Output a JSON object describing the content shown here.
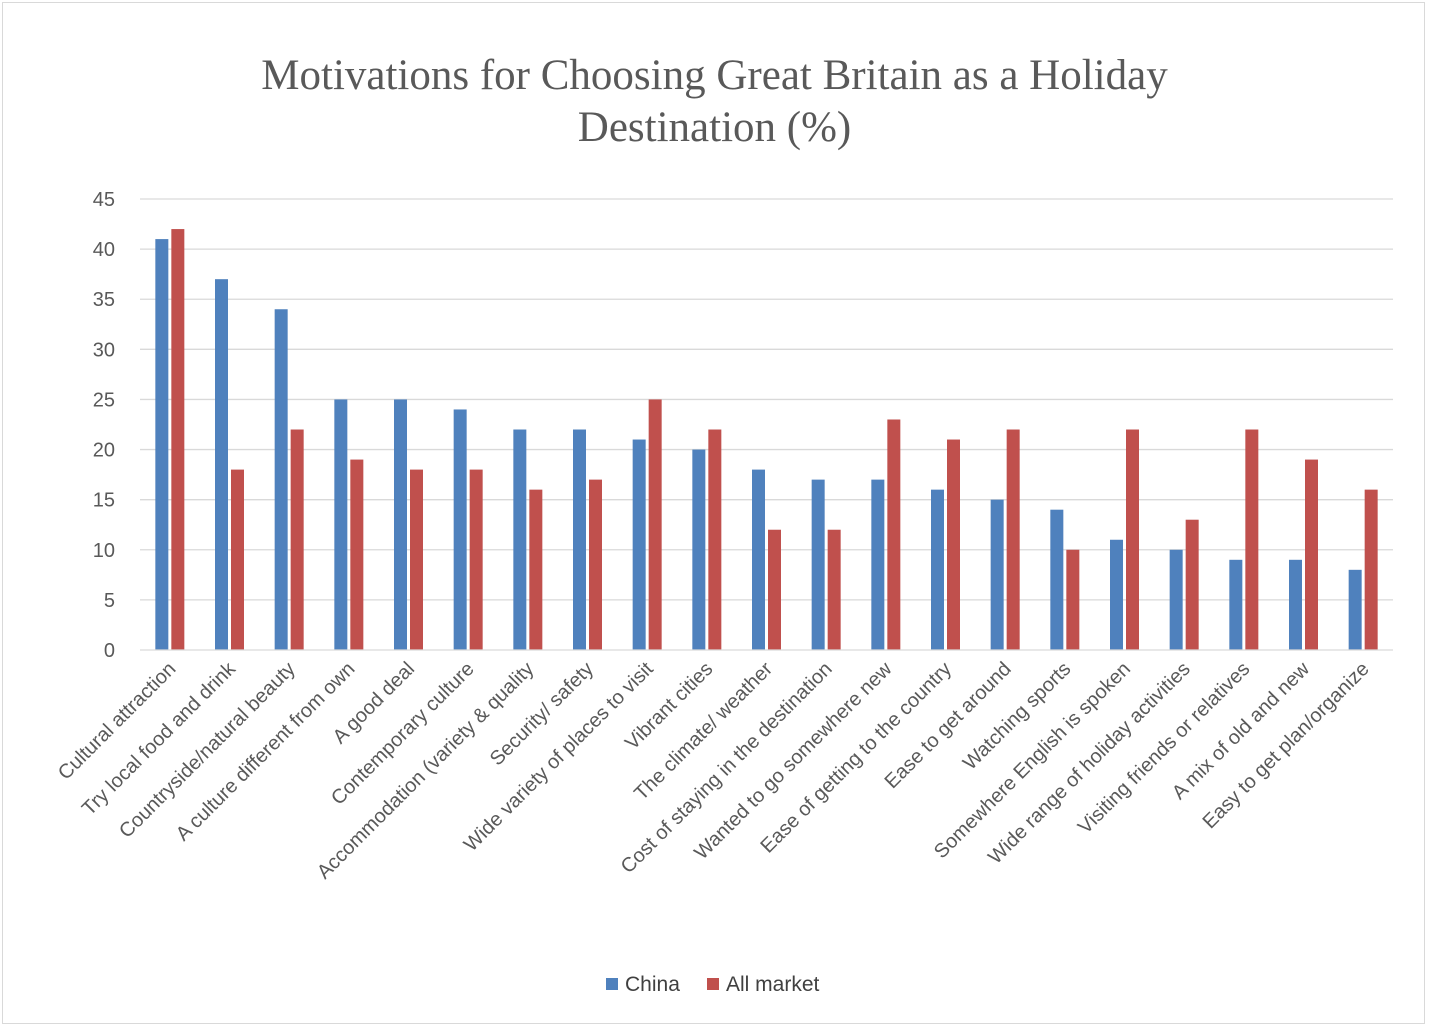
{
  "chart_data": {
    "type": "bar",
    "title_lines": [
      "Motivations for Choosing Great Britain as a Holiday",
      "Destination (%)"
    ],
    "categories": [
      "Cultural attraction",
      "Try local food and drink",
      "Countryside/natural beauty",
      "A culture different from own",
      "A good deal",
      "Contemporary culture",
      "Accommodation (variety & quality",
      "Security/ safety",
      "Wide variety of places to visit",
      "Vibrant cities",
      "The climate/ weather",
      "Cost of staying in the destination",
      "Wanted to go somewhere new",
      "Ease of getting to the country",
      "Ease to get around",
      "Watching sports",
      "Somewhere English is spoken",
      "Wide range of holiday activities",
      "Visiting friends or relatives",
      "A mix of old and new",
      "Easy to get plan/organize"
    ],
    "series": [
      {
        "name": "China",
        "color": "#4f81bd",
        "values": [
          41,
          37,
          34,
          25,
          25,
          24,
          22,
          22,
          21,
          20,
          18,
          17,
          17,
          16,
          15,
          14,
          11,
          10,
          9,
          9,
          8
        ]
      },
      {
        "name": "All market",
        "color": "#c0504d",
        "values": [
          42,
          18,
          22,
          19,
          18,
          18,
          16,
          17,
          25,
          22,
          12,
          12,
          23,
          21,
          22,
          10,
          22,
          13,
          22,
          19,
          16
        ]
      }
    ],
    "ylim": [
      0,
      45
    ],
    "yticks": [
      0,
      5,
      10,
      15,
      20,
      25,
      30,
      35,
      40,
      45
    ],
    "grid": true,
    "legend_position": "bottom"
  }
}
